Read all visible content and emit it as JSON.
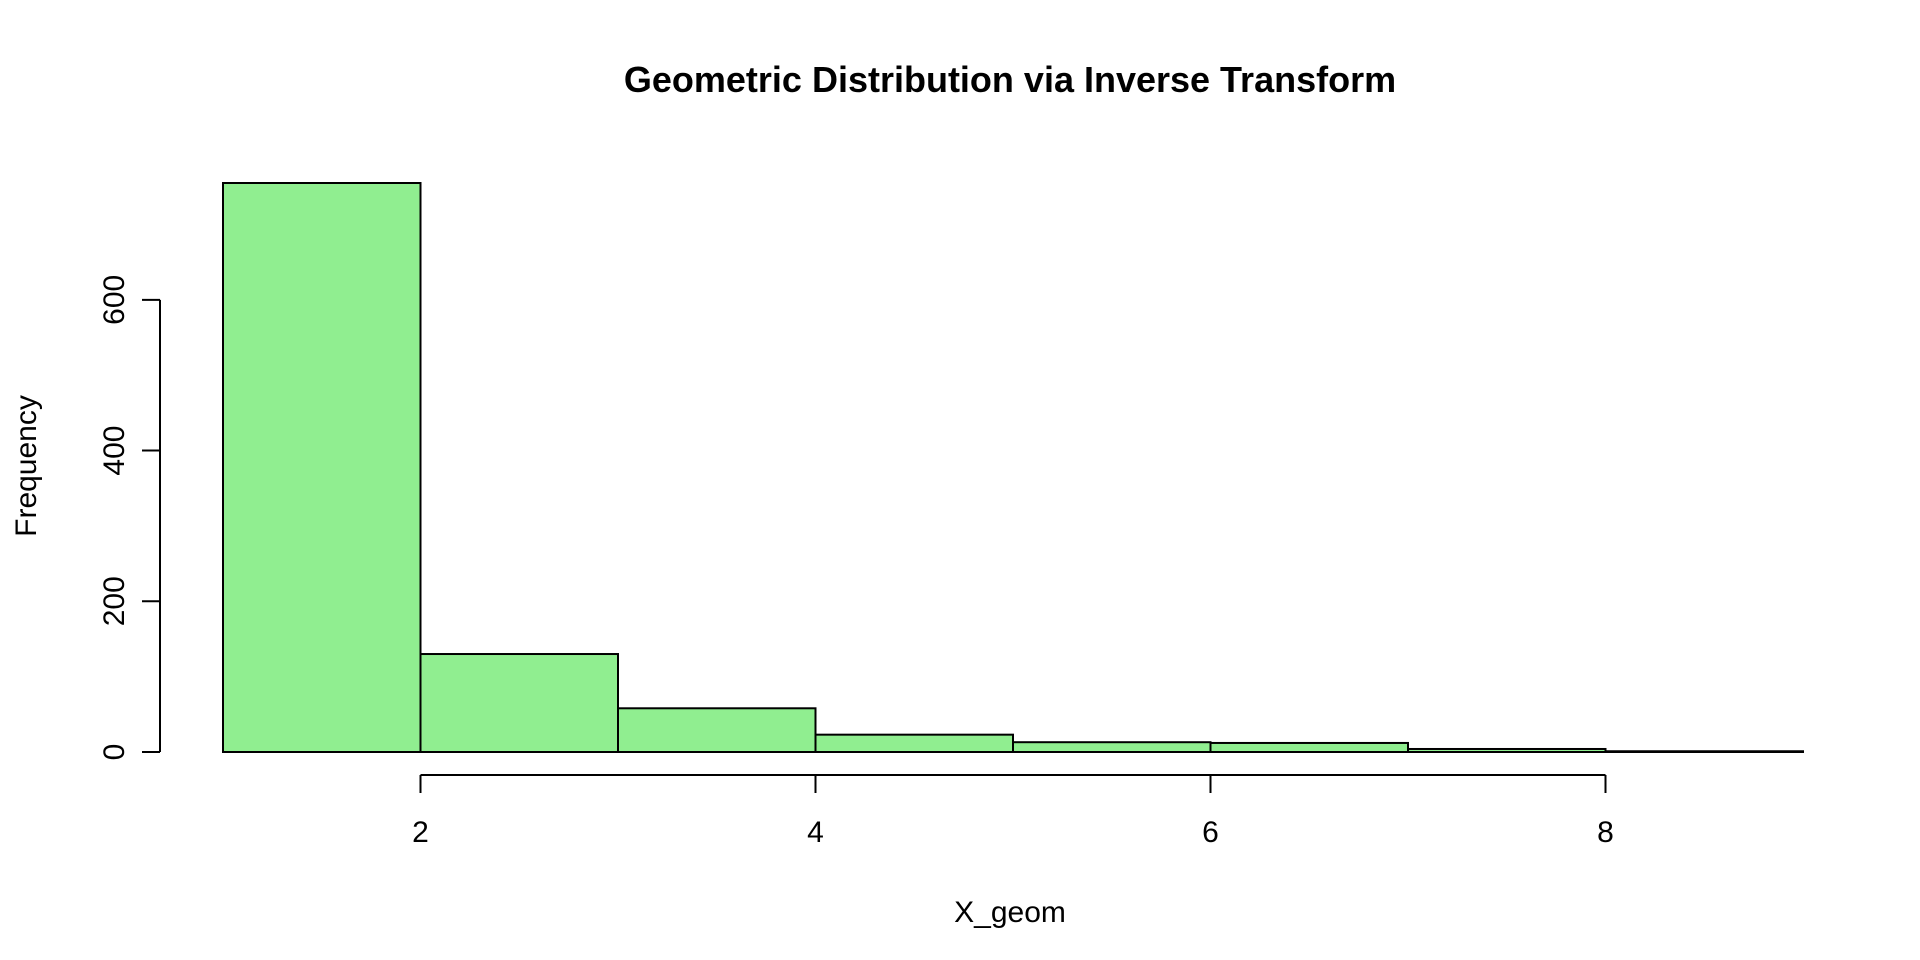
{
  "chart_data": {
    "type": "histogram",
    "title": "Geometric Distribution via Inverse Transform",
    "xlabel": "X_geom",
    "ylabel": "Frequency",
    "bar_color": "#90EE90",
    "border_color": "#000000",
    "bins": [
      {
        "x0": 1,
        "x1": 2,
        "count": 755
      },
      {
        "x0": 2,
        "x1": 3,
        "count": 130
      },
      {
        "x0": 3,
        "x1": 4,
        "count": 58
      },
      {
        "x0": 4,
        "x1": 5,
        "count": 23
      },
      {
        "x0": 5,
        "x1": 6,
        "count": 13
      },
      {
        "x0": 6,
        "x1": 7,
        "count": 12
      },
      {
        "x0": 7,
        "x1": 8,
        "count": 4
      },
      {
        "x0": 8,
        "x1": 9,
        "count": 1
      }
    ],
    "xlim": [
      1,
      9
    ],
    "ylim": [
      0,
      755
    ],
    "x_ticks": [
      2,
      4,
      6,
      8
    ],
    "y_ticks": [
      0,
      200,
      400,
      600
    ],
    "grid": false,
    "legend": "none"
  }
}
